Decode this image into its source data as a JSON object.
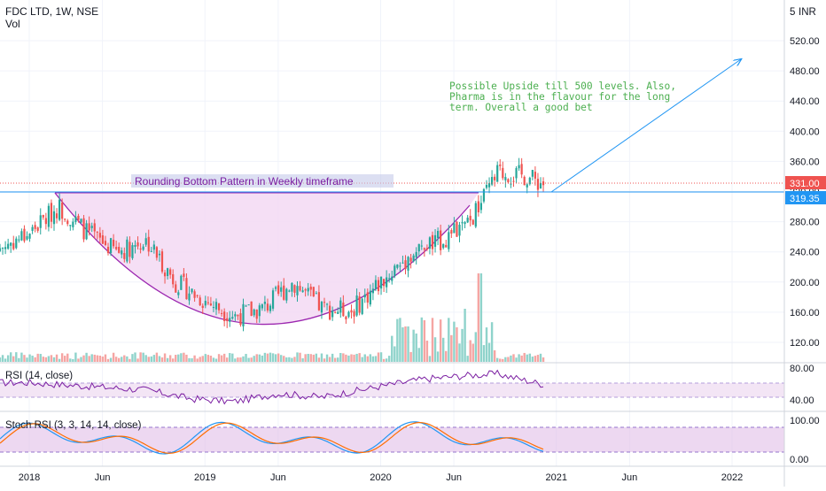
{
  "header": {
    "title": "FDC LTD, 1W, NSE",
    "volume_label": "Vol",
    "currency": "INR"
  },
  "colors": {
    "up": "#26a69a",
    "down": "#ef5350",
    "vol_up": "#8fd3cb",
    "vol_down": "#f5a5a3",
    "pattern_fill": "#f3d9f3",
    "pattern_line": "#9c27b0",
    "level_line": "#2196f3",
    "annotation_green": "#4caf50",
    "last_price_bg": "#ef5350",
    "level_bg": "#2196f3",
    "rsi_line": "#7b1fa2",
    "rsi_band": "#f3e5f5",
    "stoch_k": "#2196f3",
    "stoch_d": "#ff6d00",
    "stoch_band": "#e1bee7"
  },
  "price_axis": {
    "ticks": [
      "520.00",
      "480.00",
      "440.00",
      "400.00",
      "360.00",
      "320.00",
      "280.00",
      "240.00",
      "200.00",
      "160.00",
      "120.00"
    ],
    "top_partial": "5",
    "last_price": "331.00",
    "level_price": "319.35"
  },
  "time_axis": {
    "ticks": [
      "2018",
      "Jun",
      "2019",
      "Jun",
      "2020",
      "Jun",
      "2021",
      "Jun",
      "2022"
    ]
  },
  "annotations": {
    "pattern_label": "Rounding Bottom Pattern in Weekly timeframe",
    "target_note": [
      "Possible Upside till 500 levels. Also,",
      "Pharma is in the flavour for the long",
      "term. Overall a good bet"
    ]
  },
  "rsi_panel": {
    "label": "RSI (14, close)",
    "ticks": [
      "80.00",
      "40.00"
    ]
  },
  "stoch_panel": {
    "label": "Stoch RSI (3, 3, 14, 14, close)",
    "ticks": [
      "100.00",
      "0.00"
    ]
  },
  "chart_data": {
    "type": "candlestick",
    "title": "FDC LTD, 1W, NSE",
    "x_range": [
      "2018-01",
      "2022-03"
    ],
    "y_unit": "INR",
    "ylim": [
      100,
      540
    ],
    "rounding_bottom": {
      "left_rim_price": 319,
      "bottom_price": 148,
      "right_rim_price": 319,
      "left_rim_date": "2018-03",
      "bottom_date": "2019-07",
      "right_rim_date": "2020-09"
    },
    "breakout_level": 319.35,
    "last_close": 331.0,
    "target_arrow": {
      "from_date": "2020-12",
      "from_price": 319,
      "to_date": "2022-01",
      "to_price": 495
    },
    "weekly_closes_approx": [
      {
        "period": "2018-01",
        "close": 265
      },
      {
        "period": "2018-03",
        "close": 300
      },
      {
        "period": "2018-05",
        "close": 265
      },
      {
        "period": "2018-07",
        "close": 240
      },
      {
        "period": "2018-09",
        "close": 255
      },
      {
        "period": "2018-11",
        "close": 200
      },
      {
        "period": "2019-01",
        "close": 175
      },
      {
        "period": "2019-03",
        "close": 155
      },
      {
        "period": "2019-05",
        "close": 165
      },
      {
        "period": "2019-07",
        "close": 200
      },
      {
        "period": "2019-09",
        "close": 165
      },
      {
        "period": "2019-11",
        "close": 162
      },
      {
        "period": "2020-01",
        "close": 200
      },
      {
        "period": "2020-03",
        "close": 235
      },
      {
        "period": "2020-05",
        "close": 255
      },
      {
        "period": "2020-07",
        "close": 275
      },
      {
        "period": "2020-09",
        "close": 345
      },
      {
        "period": "2020-11",
        "close": 340
      },
      {
        "period": "2020-12",
        "close": 331
      }
    ],
    "rsi_approx": [
      {
        "period": "2018-01",
        "value": 60
      },
      {
        "period": "2018-05",
        "value": 55
      },
      {
        "period": "2018-09",
        "value": 50
      },
      {
        "period": "2018-12",
        "value": 38
      },
      {
        "period": "2019-03",
        "value": 34
      },
      {
        "period": "2019-06",
        "value": 45
      },
      {
        "period": "2019-09",
        "value": 40
      },
      {
        "period": "2020-01",
        "value": 55
      },
      {
        "period": "2020-04",
        "value": 65
      },
      {
        "period": "2020-07",
        "value": 70
      },
      {
        "period": "2020-09",
        "value": 72
      },
      {
        "period": "2020-12",
        "value": 58
      }
    ]
  }
}
